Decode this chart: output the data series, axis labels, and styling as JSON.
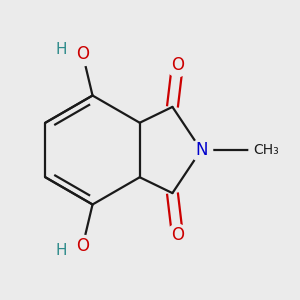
{
  "background_color": "#ebebeb",
  "bond_color": "#1a1a1a",
  "bond_lw": 1.6,
  "N_color": "#0000cc",
  "O_color": "#cc0000",
  "OH_color": "#2e8b8b",
  "label_fs": 11,
  "methyl_fs": 10,
  "fig_w": 3.0,
  "fig_h": 3.0,
  "dpi": 100,
  "xlim": [
    -1.2,
    1.8
  ],
  "ylim": [
    -1.5,
    1.5
  ]
}
